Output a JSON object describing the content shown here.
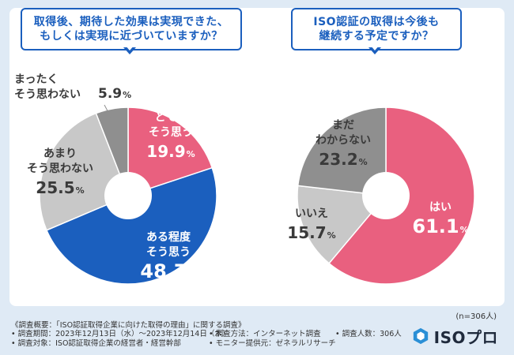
{
  "chart_data": [
    {
      "type": "pie",
      "title": "取得後、期待した効果は実現できた、\nもしくは実現に近づいていますか？",
      "slices": [
        {
          "label": "とても\nそう思う",
          "value": 19.9,
          "color": "#e9607f"
        },
        {
          "label": "ある程度\nそう思う",
          "value": 48.7,
          "color": "#1b5fbe"
        },
        {
          "label": "あまり\nそう思わない",
          "value": 25.5,
          "color": "#c8c8c8"
        },
        {
          "label": "まったく\nそう思わない",
          "value": 5.9,
          "color": "#8f8f8f"
        }
      ]
    },
    {
      "type": "pie",
      "title": "ISO認証の取得は今後も\n継続する予定ですか？",
      "slices": [
        {
          "label": "はい",
          "value": 61.1,
          "color": "#e9607f"
        },
        {
          "label": "いいえ",
          "value": 15.7,
          "color": "#c8c8c8"
        },
        {
          "label": "まだ\nわからない",
          "value": 23.2,
          "color": "#8f8f8f"
        }
      ]
    }
  ],
  "percent_sign": "%",
  "sample": "(n=306人)",
  "footer": {
    "title": "《調査概要：「ISO認証取得企業に向けた取得の理由」に関する調査》",
    "period": "• 調査期間：2023年12月13日（水）〜2023年12月14日（木）",
    "method": "• 調査方法：インターネット調査",
    "count": "• 調査人数：306人",
    "target": "• 調査対象：ISO認証取得企業の経営者・経営幹部",
    "provider": "• モニター提供元：ゼネラルリサーチ"
  },
  "logo": {
    "text": "ISOプロ"
  }
}
